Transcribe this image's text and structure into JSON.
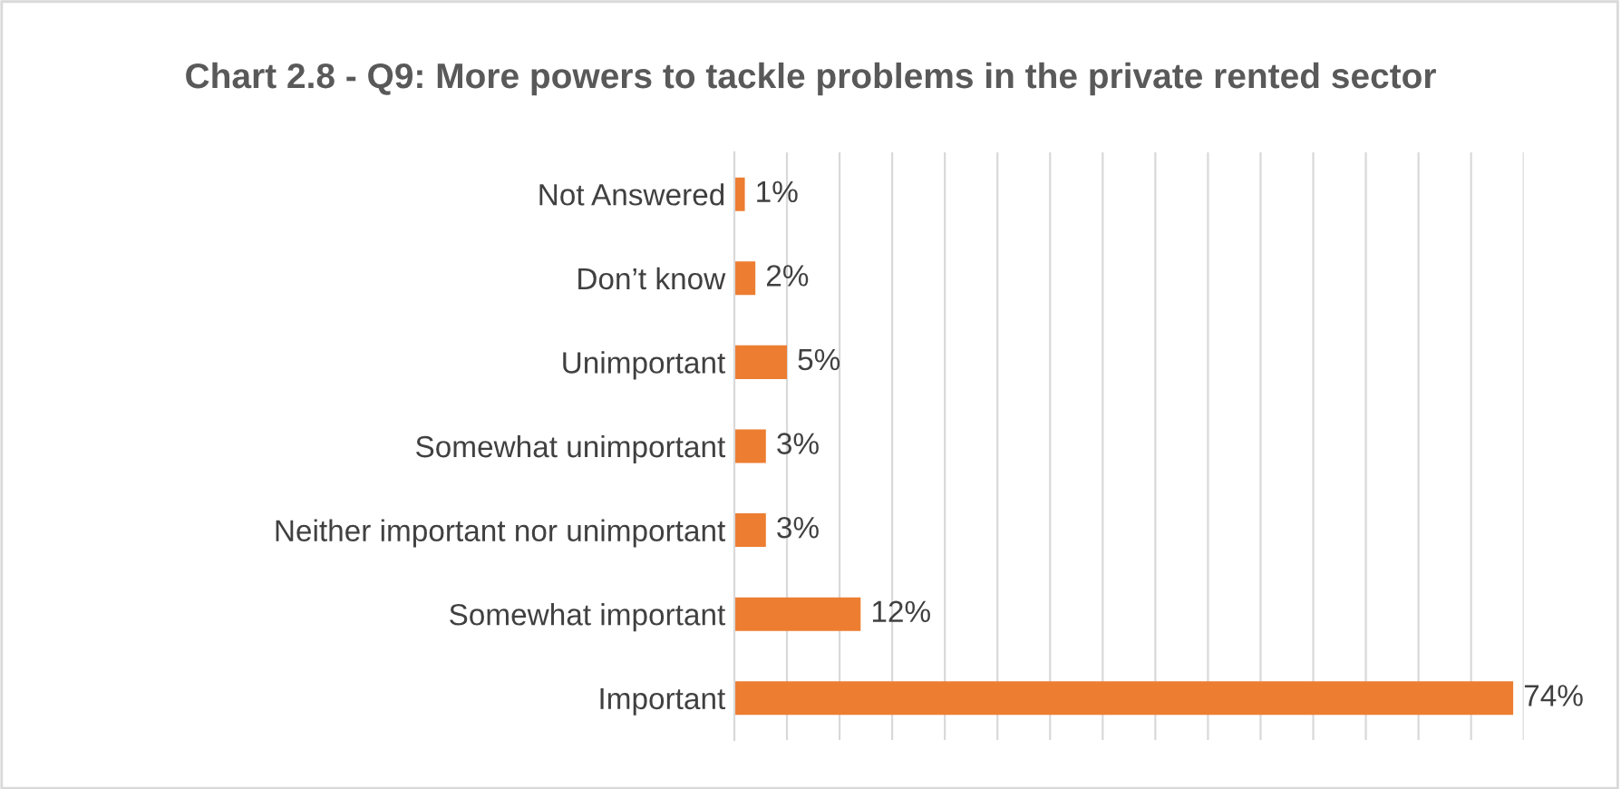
{
  "chart_data": {
    "type": "bar",
    "orientation": "horizontal",
    "title": "Chart 2.8 - Q9: More powers to tackle problems in the private rented sector",
    "categories": [
      "Not Answered",
      "Don’t know",
      "Unimportant",
      "Somewhat unimportant",
      "Neither important nor unimportant",
      "Somewhat important",
      "Important"
    ],
    "values": [
      1,
      2,
      5,
      3,
      3,
      12,
      74
    ],
    "value_labels": [
      "1%",
      "2%",
      "5%",
      "3%",
      "3%",
      "12%",
      "74%"
    ],
    "color": "#ed7d31",
    "xlim": [
      0,
      75
    ],
    "xticks": [
      {
        "value": 0,
        "label": null
      },
      {
        "value": 5,
        "label": null
      },
      {
        "value": 10,
        "label": null
      },
      {
        "value": 15,
        "label": null
      },
      {
        "value": 20,
        "label": null
      },
      {
        "value": 25,
        "label": null
      },
      {
        "value": 30,
        "label": null
      },
      {
        "value": 35,
        "label": null
      },
      {
        "value": 40,
        "label": null
      },
      {
        "value": 45,
        "label": null
      },
      {
        "value": 50,
        "label": null
      },
      {
        "value": 55,
        "label": null
      },
      {
        "value": 60,
        "label": null
      },
      {
        "value": 65,
        "label": null
      },
      {
        "value": 70,
        "label": null
      },
      {
        "value": 75,
        "label": null
      }
    ],
    "grid": "x",
    "tick_labels": "y",
    "legend": false
  }
}
